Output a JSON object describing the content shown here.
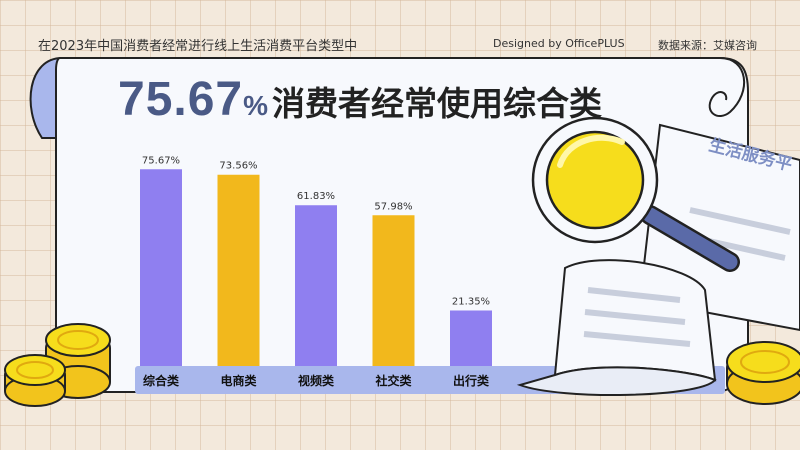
{
  "header": {
    "title": "在2023年中国消费者经常进行线上生活消费平台类型中",
    "designed_by": "Designed by  OfficePLUS",
    "source": "数据来源：艾媒咨询"
  },
  "headline": {
    "value": "75.67",
    "unit": "%",
    "text": "消费者经常使用综合类"
  },
  "decoration": {
    "document_label": "生活服务平"
  },
  "chart_data": {
    "type": "bar",
    "categories": [
      "综合类",
      "电商类",
      "视频类",
      "社交类",
      "出行类"
    ],
    "values": [
      75.67,
      73.56,
      61.83,
      57.98,
      21.35
    ],
    "value_labels": [
      "75.67%",
      "73.56%",
      "61.83%",
      "57.98%",
      "21.35%"
    ],
    "colors": [
      "#8f7ff0",
      "#f2b81c",
      "#8f7ff0",
      "#f2b81c",
      "#8f7ff0"
    ],
    "ylim": [
      0,
      100
    ],
    "grid": false,
    "legend": "none"
  }
}
